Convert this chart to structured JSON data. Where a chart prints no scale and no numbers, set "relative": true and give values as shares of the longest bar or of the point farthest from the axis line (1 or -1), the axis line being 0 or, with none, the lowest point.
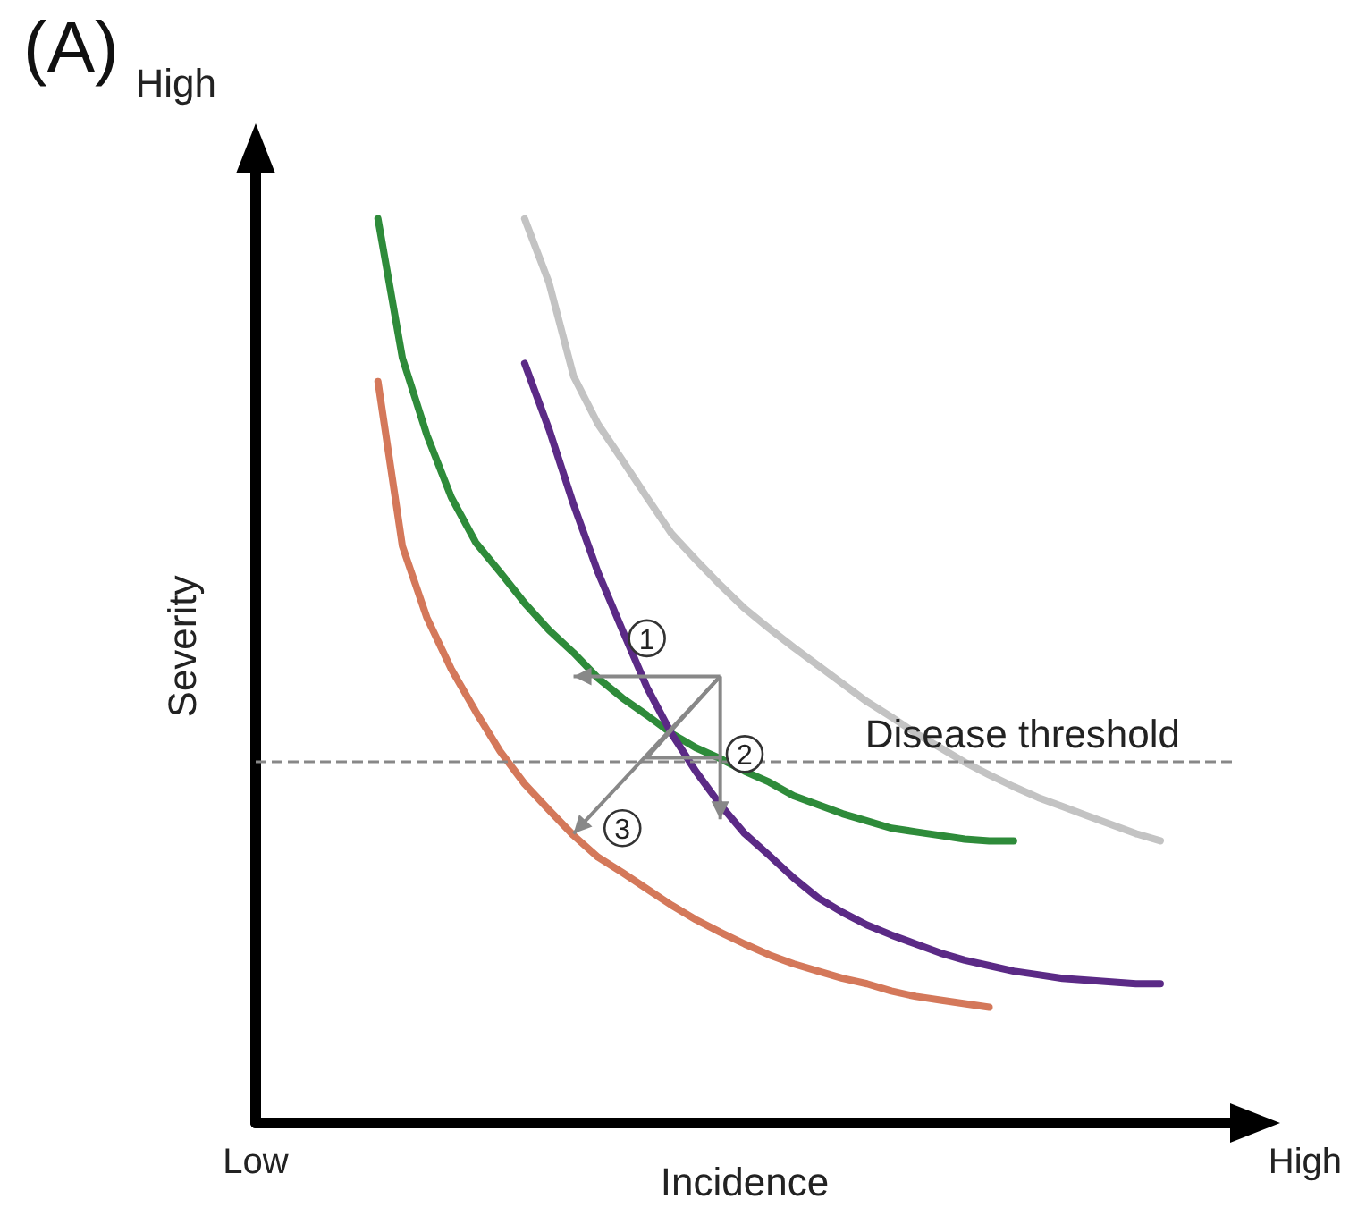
{
  "chart_data": {
    "type": "line",
    "title": "(A)",
    "xlabel": "Incidence",
    "ylabel": "Severity",
    "categories": [
      null,
      null,
      null,
      null,
      null,
      null,
      null,
      null,
      null,
      null,
      null,
      null,
      null,
      null,
      null,
      null,
      null,
      null,
      null,
      null,
      null,
      null,
      null,
      null,
      null,
      null,
      null,
      null,
      null,
      null,
      null,
      null,
      null,
      null,
      null,
      null,
      null,
      null,
      null,
      null,
      null
    ],
    "relative": true,
    "grid": false,
    "marker": "none",
    "line_style": "solid",
    "annotations": [
      "High",
      "Low",
      "High",
      "1",
      "2",
      "3"
    ],
    "ref_lines": [
      {
        "axis": "y",
        "value": 0.403,
        "label": "Disease threshold",
        "color": "#888888",
        "line_style": "dashed"
      }
    ],
    "series": [
      {
        "color": "#2e8b3a",
        "values": [
          null,
          null,
          null,
          null,
          null,
          1,
          0.846,
          0.761,
          0.692,
          0.642,
          0.609,
          0.575,
          0.545,
          0.52,
          0.492,
          0.47,
          0.451,
          0.431,
          0.415,
          0.403,
          0.389,
          0.377,
          0.362,
          0.352,
          0.342,
          0.334,
          0.326,
          0.322,
          0.318,
          0.314,
          0.312,
          0.312,
          null,
          null,
          null,
          null,
          null,
          null,
          null,
          null,
          null
        ]
      },
      {
        "color": "#c3c3c3",
        "values": [
          null,
          null,
          null,
          null,
          null,
          null,
          null,
          null,
          null,
          null,
          null,
          1,
          0.929,
          0.826,
          0.773,
          0.733,
          0.692,
          0.652,
          0.623,
          0.595,
          0.569,
          0.547,
          0.526,
          0.506,
          0.486,
          0.466,
          0.449,
          0.431,
          0.415,
          0.399,
          0.385,
          0.372,
          0.36,
          0.35,
          0.34,
          0.33,
          0.32,
          0.312,
          null,
          null,
          null
        ]
      },
      {
        "color": "#5b2a86",
        "values": [
          null,
          null,
          null,
          null,
          null,
          null,
          null,
          null,
          null,
          null,
          null,
          0.84,
          0.767,
          0.684,
          0.609,
          0.545,
          0.482,
          0.431,
          0.389,
          0.352,
          0.32,
          0.296,
          0.271,
          0.249,
          0.233,
          0.219,
          0.208,
          0.198,
          0.188,
          0.18,
          0.174,
          0.168,
          0.164,
          0.16,
          0.158,
          0.156,
          0.154,
          0.154,
          null,
          null,
          null
        ]
      },
      {
        "color": "#d4785a",
        "values": [
          null,
          null,
          null,
          null,
          null,
          0.82,
          0.638,
          0.559,
          0.502,
          0.455,
          0.411,
          0.375,
          0.346,
          0.318,
          0.294,
          0.277,
          0.259,
          0.241,
          0.225,
          0.211,
          0.198,
          0.186,
          0.176,
          0.168,
          0.16,
          0.154,
          0.146,
          0.14,
          0.136,
          0.132,
          0.128,
          null,
          null,
          null,
          null,
          null,
          null,
          null,
          null,
          null,
          null
        ]
      }
    ]
  }
}
